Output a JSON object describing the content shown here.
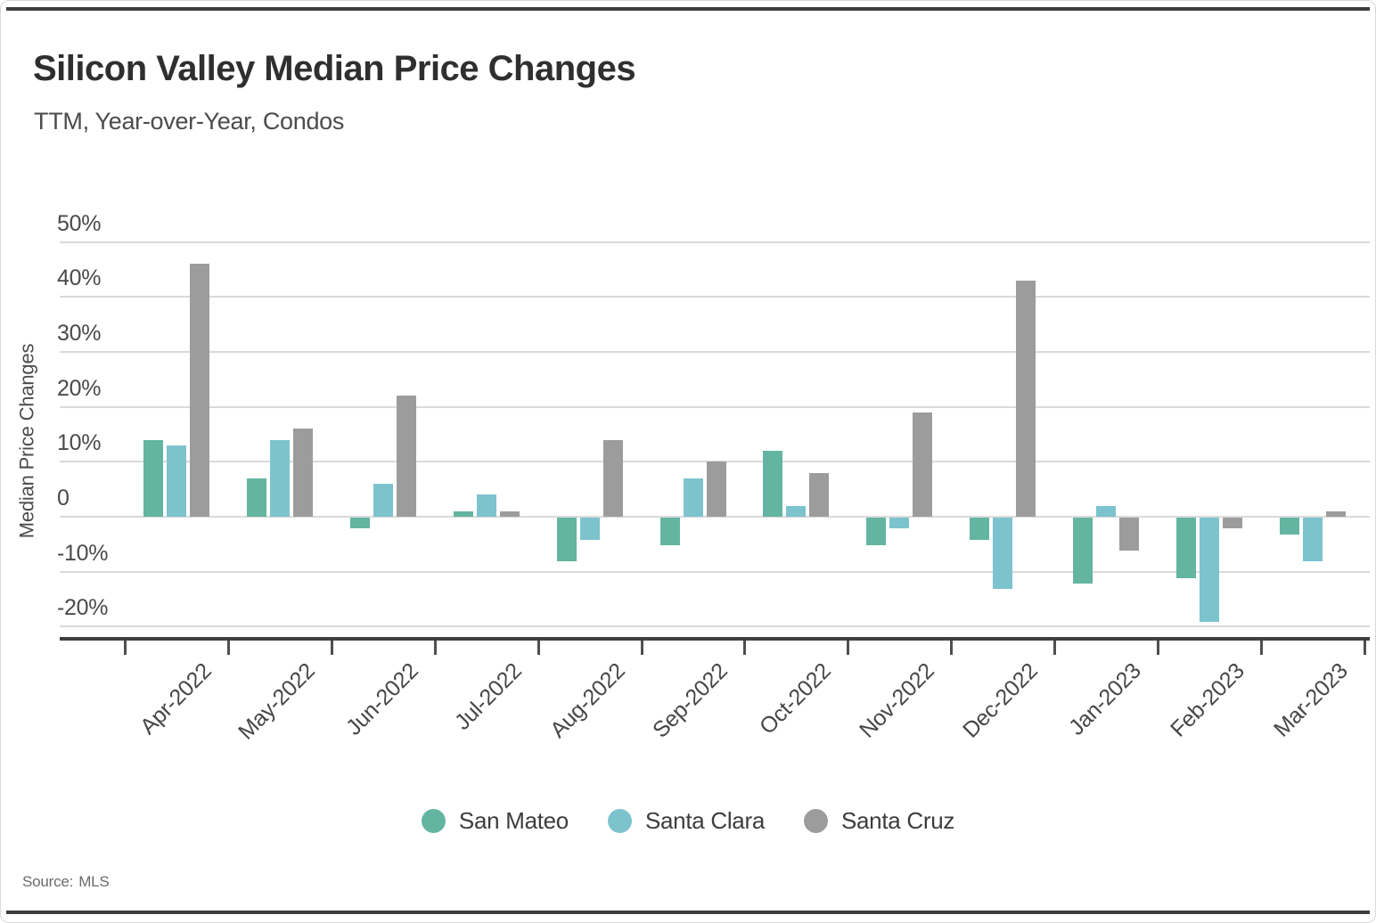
{
  "header": {
    "title": "Silicon Valley Median Price Changes",
    "subtitle": "TTM, Year-over-Year, Condos"
  },
  "source": {
    "label": "Source:",
    "value": "MLS"
  },
  "chart_data": {
    "type": "bar",
    "title": "Silicon Valley Median Price Changes",
    "subtitle": "TTM, Year-over-Year, Condos",
    "ylabel": "Median Price Changes",
    "categories": [
      "Apr-2022",
      "May-2022",
      "Jun-2022",
      "Jul-2022",
      "Aug-2022",
      "Sep-2022",
      "Oct-2022",
      "Nov-2022",
      "Dec-2022",
      "Jan-2023",
      "Feb-2023",
      "Mar-2023"
    ],
    "series": [
      {
        "name": "San Mateo",
        "color": "#63b5a1",
        "values": [
          14,
          7,
          -2,
          1,
          -8,
          -5,
          12,
          -5,
          -4,
          -12,
          -11,
          -3
        ]
      },
      {
        "name": "Santa Clara",
        "color": "#7cc3ce",
        "values": [
          13,
          14,
          6,
          4,
          -4,
          7,
          2,
          -2,
          -13,
          2,
          -19,
          -8
        ]
      },
      {
        "name": "Santa Cruz",
        "color": "#9c9c9c",
        "values": [
          46,
          16,
          22,
          1,
          14,
          10,
          8,
          19,
          43,
          -6,
          -2,
          1
        ]
      }
    ],
    "yticks": [
      50,
      40,
      30,
      20,
      10,
      0,
      -10,
      -20
    ],
    "ytick_unit": "%",
    "ylim": [
      -22.4,
      50.1
    ],
    "grid": true,
    "legend_position": "bottom",
    "source": "MLS"
  },
  "colors": {
    "grid": "#dadada",
    "axis": "#3f3f3f",
    "text_primary": "#2f2f2f",
    "text_secondary": "#4b4b4b"
  }
}
